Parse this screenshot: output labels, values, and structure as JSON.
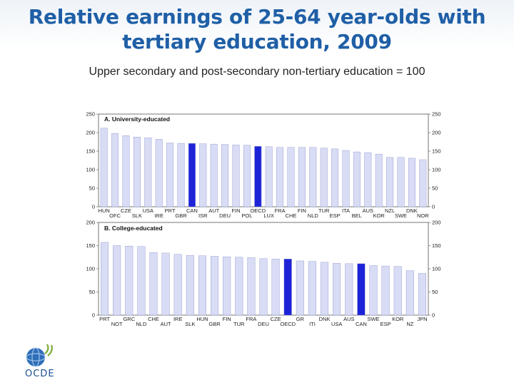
{
  "slide": {
    "title_line1": "Relative earnings of 25-64 year-olds with",
    "title_line2": "tertiary education, 2009",
    "subtitle": "Upper secondary and post-secondary non-tertiary education = 100"
  },
  "logo": {
    "text": "OCDE",
    "icon": "ocde-globe-icon"
  },
  "colors": {
    "bar": "#d8dcf5",
    "highlight": "#1d24d8",
    "bar_edge": "#8a8fc7"
  },
  "chart_data": [
    {
      "type": "bar",
      "title": "A. University-educated",
      "ylim": [
        0,
        250
      ],
      "yticks": [
        0,
        50,
        100,
        150,
        200,
        250
      ],
      "grid": false,
      "categories": [
        "HUN",
        "OFC",
        "CZE",
        "SLK",
        "USA",
        "IRE",
        "PRT",
        "GBR",
        "CAN",
        "ISR",
        "AUT",
        "DEU",
        "FIN",
        "POL",
        "OECD",
        "LUX",
        "FRA",
        "CHE",
        "FIN",
        "NLD",
        "TUR",
        "ESP",
        "ITA",
        "BEL",
        "AUS",
        "KOR",
        "NZL",
        "SWE",
        "DNK",
        "NOR"
      ],
      "labels_top": [
        "HUN",
        "",
        "CZE",
        "",
        "USA",
        "",
        "PRT",
        "",
        "CAN",
        "",
        "AUT",
        "",
        "FIN",
        "",
        "OECD",
        "",
        "FRA",
        "",
        "FIN",
        "",
        "TUR",
        "",
        "ITA",
        "",
        "AUS",
        "",
        "NZL",
        "",
        "DNK",
        ""
      ],
      "labels_bottom": [
        "",
        "OFC",
        "",
        "SLK",
        "",
        "IRE",
        "",
        "GBR",
        "",
        "ISR",
        "",
        "DEU",
        "",
        "POL",
        "",
        "LUX",
        "",
        "CHE",
        "",
        "NLD",
        "",
        "ESP",
        "",
        "BEL",
        "",
        "KOR",
        "",
        "SWE",
        "",
        "NOR"
      ],
      "values": [
        212,
        198,
        192,
        188,
        186,
        182,
        172,
        171,
        171,
        170,
        169,
        168,
        167,
        166,
        163,
        162,
        160,
        160,
        160,
        160,
        158,
        156,
        152,
        148,
        146,
        142,
        133,
        133,
        131,
        127
      ],
      "highlight": [
        "CAN",
        "OECD"
      ]
    },
    {
      "type": "bar",
      "title": "B. College-educated",
      "ylim": [
        0,
        200
      ],
      "yticks": [
        0,
        50,
        100,
        150,
        200
      ],
      "grid": false,
      "categories": [
        "PRT",
        "NOT",
        "GRC",
        "NLD",
        "CHE",
        "AUT",
        "IRE",
        "SLK",
        "HUN",
        "GBR",
        "FIN",
        "TUR",
        "FRA",
        "DEU",
        "CZE",
        "OECD",
        "GR",
        "ITI",
        "DNK",
        "USA",
        "AUS",
        "CAN",
        "SWE",
        "ESP",
        "KOR",
        "NZ",
        "JPN"
      ],
      "labels_top": [
        "PRT",
        "",
        "GRC",
        "",
        "CHE",
        "",
        "IRE",
        "",
        "HUN",
        "",
        "FIN",
        "",
        "FRA",
        "",
        "CZE",
        "",
        "GR",
        "",
        "DNK",
        "",
        "AUS",
        "",
        "SWE",
        "",
        "KOR",
        "",
        "JPN"
      ],
      "labels_bottom": [
        "",
        "NOT",
        "",
        "NLD",
        "",
        "AUT",
        "",
        "SLK",
        "",
        "GBR",
        "",
        "TUR",
        "",
        "DEU",
        "",
        "OECD",
        "",
        "ITI",
        "",
        "USA",
        "",
        "CAN",
        "",
        "ESP",
        "",
        "NZ",
        ""
      ],
      "values": [
        157,
        150,
        149,
        148,
        135,
        134,
        131,
        129,
        128,
        127,
        126,
        125,
        124,
        122,
        121,
        121,
        117,
        116,
        114,
        112,
        111,
        111,
        107,
        106,
        105,
        96,
        90
      ],
      "highlight": [
        "OECD",
        "CAN"
      ]
    }
  ]
}
